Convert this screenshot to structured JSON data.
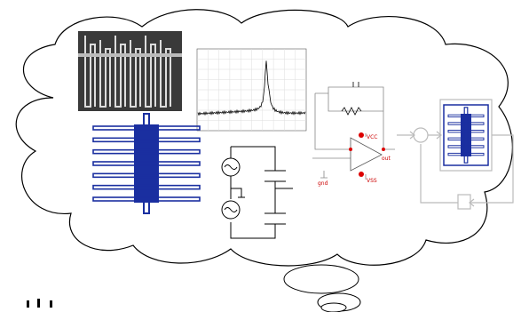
{
  "labels": {
    "vcc": "VCC",
    "vss": "VSS",
    "out": "out",
    "gnd": "gnd"
  }
}
